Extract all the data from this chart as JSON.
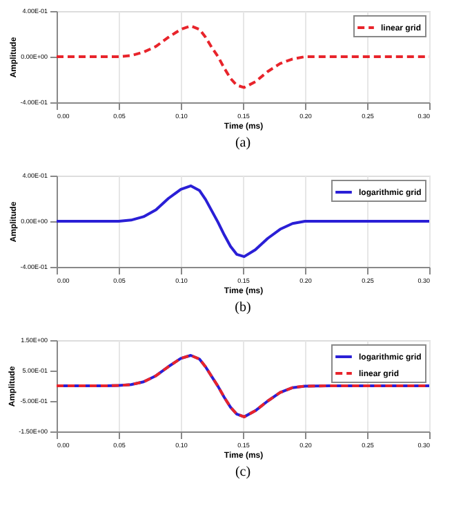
{
  "chart_data": [
    {
      "type": "line",
      "xlabel": "Time (ms)",
      "ylabel": "Amplitude",
      "annotations": [
        "(a)"
      ],
      "grid": "x",
      "legend": "top right",
      "xlim": [
        0,
        0.3
      ],
      "xticks": [
        {
          "value": 0,
          "label": "0.00"
        },
        {
          "value": 0.05,
          "label": "0.05"
        },
        {
          "value": 0.1,
          "label": "0.10"
        },
        {
          "value": 0.15,
          "label": "0.15"
        },
        {
          "value": 0.2,
          "label": "0.20"
        },
        {
          "value": 0.25,
          "label": "0.25"
        },
        {
          "value": 0.3,
          "label": "0.30"
        }
      ],
      "ylim": [
        -0.4,
        0.4
      ],
      "yticks": [
        {
          "value": -0.4,
          "label": "-4.00E-01"
        },
        {
          "value": 0,
          "label": "0.00E+00"
        },
        {
          "value": 0.4,
          "label": "4.00E-01"
        }
      ],
      "x": [
        0,
        0.02,
        0.04,
        0.05,
        0.06,
        0.07,
        0.08,
        0.09,
        0.1,
        0.108,
        0.115,
        0.12,
        0.125,
        0.13,
        0.135,
        0.14,
        0.145,
        0.151,
        0.16,
        0.17,
        0.18,
        0.19,
        0.2,
        0.22,
        0.25,
        0.3
      ],
      "series": [
        {
          "name": "linear grid",
          "color": "#e8242b",
          "line_style": "dashed",
          "values": [
            0,
            0,
            0,
            0,
            0.01,
            0.04,
            0.09,
            0.17,
            0.24,
            0.27,
            0.24,
            0.17,
            0.08,
            0,
            -0.1,
            -0.19,
            -0.25,
            -0.27,
            -0.22,
            -0.13,
            -0.06,
            -0.02,
            0,
            0,
            0,
            0
          ]
        }
      ]
    },
    {
      "type": "line",
      "xlabel": "Time (ms)",
      "ylabel": "Amplitude",
      "annotations": [
        "(b)"
      ],
      "grid": "x",
      "legend": "top right",
      "xlim": [
        0,
        0.3
      ],
      "xticks": [
        {
          "value": 0,
          "label": "0.00"
        },
        {
          "value": 0.05,
          "label": "0.05"
        },
        {
          "value": 0.1,
          "label": "0.10"
        },
        {
          "value": 0.15,
          "label": "0.15"
        },
        {
          "value": 0.2,
          "label": "0.20"
        },
        {
          "value": 0.25,
          "label": "0.25"
        },
        {
          "value": 0.3,
          "label": "0.30"
        }
      ],
      "ylim": [
        -0.4,
        0.4
      ],
      "yticks": [
        {
          "value": -0.4,
          "label": "-4.00E-01"
        },
        {
          "value": 0,
          "label": "0.00E+00"
        },
        {
          "value": 0.4,
          "label": "4.00E-01"
        }
      ],
      "x": [
        0,
        0.02,
        0.04,
        0.05,
        0.06,
        0.07,
        0.08,
        0.09,
        0.1,
        0.108,
        0.115,
        0.12,
        0.125,
        0.13,
        0.135,
        0.14,
        0.145,
        0.151,
        0.16,
        0.17,
        0.18,
        0.19,
        0.2,
        0.22,
        0.25,
        0.3
      ],
      "series": [
        {
          "name": "logarithmic grid",
          "color": "#2a1fd6",
          "line_style": "solid",
          "values": [
            0,
            0,
            0,
            0,
            0.01,
            0.04,
            0.1,
            0.2,
            0.28,
            0.31,
            0.27,
            0.19,
            0.09,
            -0.01,
            -0.12,
            -0.22,
            -0.29,
            -0.31,
            -0.25,
            -0.15,
            -0.07,
            -0.02,
            0,
            0,
            0,
            0
          ]
        }
      ]
    },
    {
      "type": "line",
      "xlabel": "Time (ms)",
      "ylabel": "Amplitude",
      "annotations": [
        "(c)"
      ],
      "grid": "x",
      "legend": "top right",
      "xlim": [
        0,
        0.3
      ],
      "xticks": [
        {
          "value": 0,
          "label": "0.00"
        },
        {
          "value": 0.05,
          "label": "0.05"
        },
        {
          "value": 0.1,
          "label": "0.10"
        },
        {
          "value": 0.15,
          "label": "0.15"
        },
        {
          "value": 0.2,
          "label": "0.20"
        },
        {
          "value": 0.25,
          "label": "0.25"
        },
        {
          "value": 0.3,
          "label": "0.30"
        }
      ],
      "ylim": [
        -1.5,
        1.5
      ],
      "yticks": [
        {
          "value": -1.5,
          "label": "-1.50E+00"
        },
        {
          "value": -0.5,
          "label": "-5.00E-01"
        },
        {
          "value": 0.5,
          "label": "5.00E-01"
        },
        {
          "value": 1.5,
          "label": "1.50E+00"
        }
      ],
      "x": [
        0,
        0.02,
        0.04,
        0.05,
        0.06,
        0.07,
        0.08,
        0.09,
        0.1,
        0.108,
        0.115,
        0.12,
        0.125,
        0.13,
        0.135,
        0.14,
        0.145,
        0.151,
        0.16,
        0.17,
        0.18,
        0.19,
        0.2,
        0.22,
        0.25,
        0.3
      ],
      "series": [
        {
          "name": "logarithmic grid",
          "color": "#2a1fd6",
          "line_style": "solid",
          "values": [
            0,
            0,
            0,
            0.01,
            0.04,
            0.13,
            0.33,
            0.63,
            0.9,
            1.0,
            0.88,
            0.62,
            0.3,
            -0.02,
            -0.38,
            -0.7,
            -0.93,
            -1.02,
            -0.82,
            -0.5,
            -0.22,
            -0.06,
            -0.01,
            0,
            0,
            0
          ]
        },
        {
          "name": "linear grid",
          "color": "#e8242b",
          "line_style": "dashed",
          "values": [
            0,
            0,
            0,
            0.01,
            0.04,
            0.13,
            0.33,
            0.63,
            0.9,
            1.0,
            0.88,
            0.62,
            0.3,
            -0.02,
            -0.38,
            -0.7,
            -0.93,
            -1.02,
            -0.82,
            -0.5,
            -0.22,
            -0.06,
            -0.01,
            0,
            0,
            0
          ]
        }
      ]
    }
  ]
}
